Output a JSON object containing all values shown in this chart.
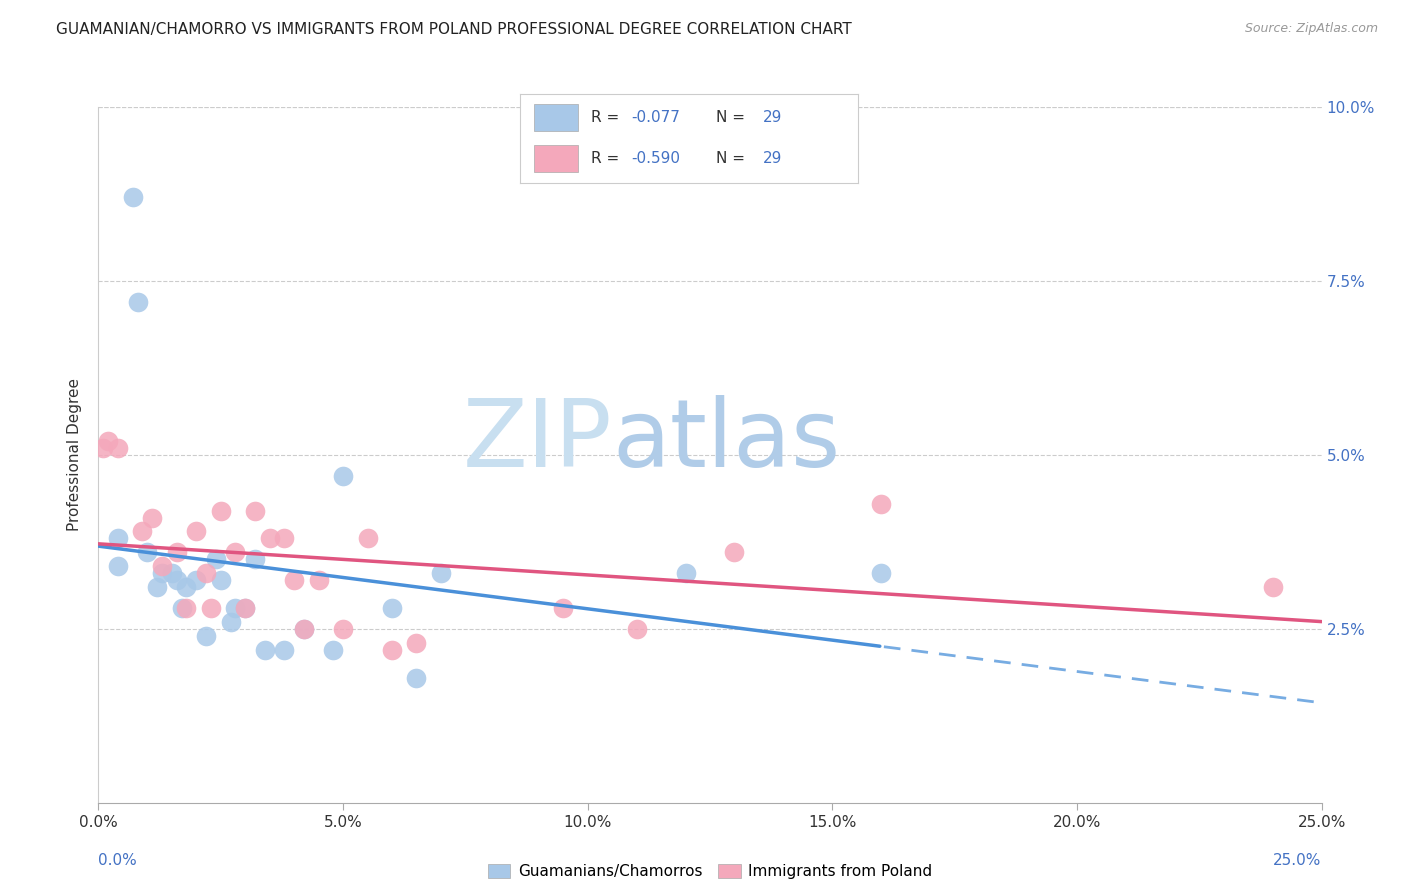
{
  "title": "GUAMANIAN/CHAMORRO VS IMMIGRANTS FROM POLAND PROFESSIONAL DEGREE CORRELATION CHART",
  "source": "Source: ZipAtlas.com",
  "ylabel": "Professional Degree",
  "R_blue": -0.077,
  "N_blue": 29,
  "R_pink": -0.59,
  "N_pink": 29,
  "blue_color": "#a8c8e8",
  "pink_color": "#f4a8bb",
  "blue_line_color": "#4a90d9",
  "pink_line_color": "#e05580",
  "xlim": [
    0.0,
    0.25
  ],
  "ylim": [
    0.0,
    0.1
  ],
  "xticks": [
    0.0,
    0.05,
    0.1,
    0.15,
    0.2,
    0.25
  ],
  "yticks": [
    0.025,
    0.05,
    0.075,
    0.1
  ],
  "blue_x": [
    0.004,
    0.004,
    0.007,
    0.008,
    0.01,
    0.012,
    0.013,
    0.015,
    0.016,
    0.017,
    0.018,
    0.02,
    0.022,
    0.024,
    0.025,
    0.027,
    0.028,
    0.03,
    0.032,
    0.034,
    0.038,
    0.042,
    0.048,
    0.05,
    0.06,
    0.065,
    0.07,
    0.12,
    0.16
  ],
  "blue_y": [
    0.038,
    0.034,
    0.087,
    0.072,
    0.036,
    0.031,
    0.033,
    0.033,
    0.032,
    0.028,
    0.031,
    0.032,
    0.024,
    0.035,
    0.032,
    0.026,
    0.028,
    0.028,
    0.035,
    0.022,
    0.022,
    0.025,
    0.022,
    0.047,
    0.028,
    0.018,
    0.033,
    0.033,
    0.033
  ],
  "pink_x": [
    0.001,
    0.002,
    0.004,
    0.009,
    0.011,
    0.013,
    0.016,
    0.018,
    0.02,
    0.022,
    0.023,
    0.025,
    0.028,
    0.03,
    0.032,
    0.035,
    0.038,
    0.04,
    0.042,
    0.045,
    0.05,
    0.055,
    0.06,
    0.065,
    0.095,
    0.11,
    0.13,
    0.16,
    0.24
  ],
  "pink_y": [
    0.051,
    0.052,
    0.051,
    0.039,
    0.041,
    0.034,
    0.036,
    0.028,
    0.039,
    0.033,
    0.028,
    0.042,
    0.036,
    0.028,
    0.042,
    0.038,
    0.038,
    0.032,
    0.025,
    0.032,
    0.025,
    0.038,
    0.022,
    0.023,
    0.028,
    0.025,
    0.036,
    0.043,
    0.031
  ],
  "background_color": "#ffffff",
  "grid_color": "#cccccc",
  "watermark_zip_color": "#c8dff0",
  "watermark_atlas_color": "#b0cce8",
  "right_axis_color": "#4472c4",
  "legend_box_color": "#e8e8e8"
}
